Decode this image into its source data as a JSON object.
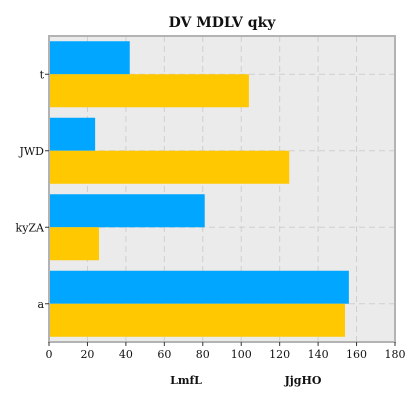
{
  "chart_data": {
    "type": "bar",
    "orientation": "horizontal",
    "title": "DV MDLV qky",
    "categories": [
      "t",
      "JWD",
      "kyZA",
      "a"
    ],
    "series": [
      {
        "name": "LmfL",
        "color": "#00a6ff",
        "values": [
          42,
          24,
          81,
          156
        ]
      },
      {
        "name": "JjgHO",
        "color": "#ffc800",
        "values": [
          104,
          125,
          26,
          154
        ]
      }
    ],
    "xlim": [
      0,
      180
    ],
    "xticks": [
      0,
      20,
      40,
      60,
      80,
      100,
      120,
      140,
      160,
      180
    ],
    "grid": true,
    "legend_position": "bottom",
    "plot_background": "#ebebeb",
    "frame_color": "#b3b3b3"
  }
}
